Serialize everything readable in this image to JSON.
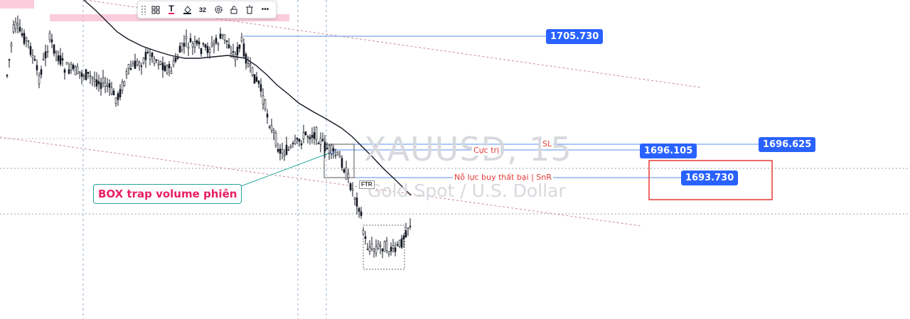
{
  "watermark": {
    "symbol": "XAUUSD, 15",
    "description": "Gold Spot / U.S. Dollar"
  },
  "price_tags": {
    "p1705": "1705.730",
    "p1696_105": "1696.105",
    "p1696_625": "1696.625",
    "p1693": "1693.730"
  },
  "labels": {
    "sl": "SL",
    "cuc_tri": "Cực trị",
    "no_luc": "Nỗ lực buy thất bại | SnR",
    "box_trap": "BOX trap volume phiên",
    "ftr": "FTR"
  },
  "toolbar": {
    "line_width": "32",
    "more": "•••"
  },
  "icons": [
    "drag-handle-icon",
    "template-icon",
    "text-icon",
    "fill-icon",
    "settings-icon",
    "lock-icon",
    "trash-icon",
    "more-icon"
  ],
  "colors": {
    "bull": "#26a69a",
    "bear": "#ef5350",
    "tag": "#2962ff",
    "label_red": "#e53935",
    "callout_text": "#e91e63",
    "zone_pink": "#f8bbd0",
    "highlight_box": "#e53935"
  }
}
